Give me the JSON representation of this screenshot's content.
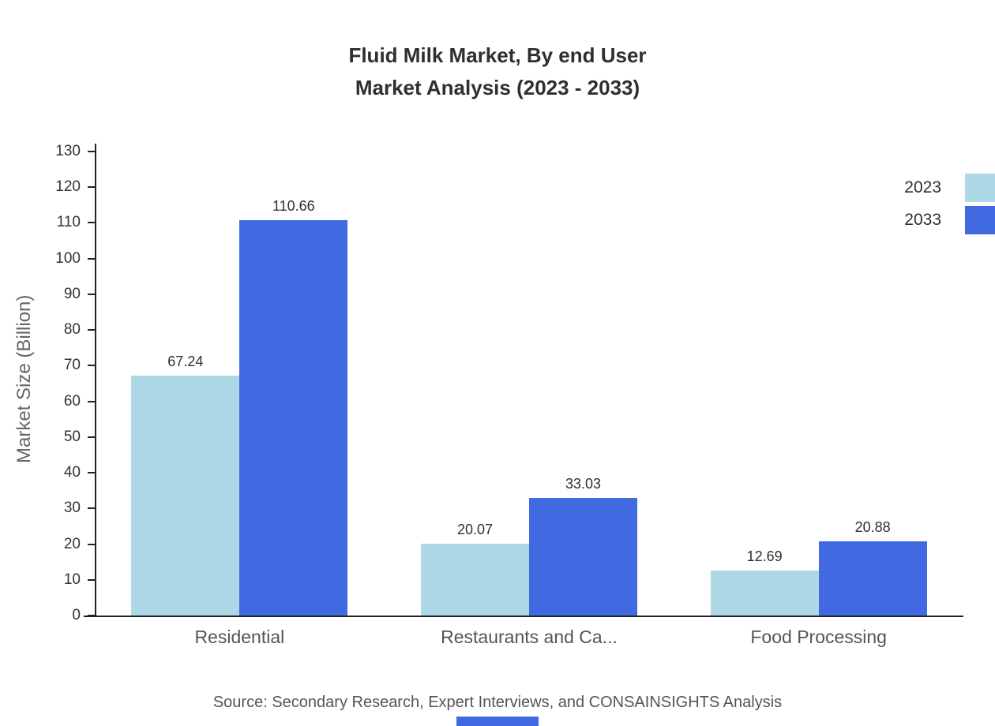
{
  "title_line1": "Fluid Milk Market, By end User",
  "title_line2": "Market Analysis (2023 - 2033)",
  "ylabel": "Market Size (Billion)",
  "source": "Source: Secondary Research, Expert Interviews, and CONSAINSIGHTS Analysis",
  "colors": {
    "series_2023": "#ADD8E6",
    "series_2033": "#4169E1",
    "axis": "#222222",
    "title_text": "#2f2f2f",
    "tick_text": "#333333",
    "category_text": "#555555"
  },
  "legend": [
    {
      "label": "2023",
      "color": "#ADD8E6"
    },
    {
      "label": "2033",
      "color": "#4169E1"
    }
  ],
  "chart_data": {
    "type": "bar",
    "title": "Fluid Milk Market, By end User Market Analysis (2023 - 2033)",
    "categories": [
      "Residential",
      "Restaurants and Ca...",
      "Food Processing"
    ],
    "series": [
      {
        "name": "2023",
        "color": "#ADD8E6",
        "values": [
          67.24,
          20.07,
          12.69
        ]
      },
      {
        "name": "2033",
        "color": "#4169E1",
        "values": [
          110.66,
          33.03,
          20.88
        ]
      }
    ],
    "value_labels": [
      [
        "67.24",
        "20.07",
        "12.69"
      ],
      [
        "110.66",
        "33.03",
        "20.88"
      ]
    ],
    "xlabel": "",
    "ylabel": "Market Size (Billion)",
    "ylim": [
      0,
      130
    ],
    "yticks": [
      0,
      10,
      20,
      30,
      40,
      50,
      60,
      70,
      80,
      90,
      100,
      110,
      120,
      130
    ],
    "grid": false,
    "legend_position": "top-right"
  }
}
